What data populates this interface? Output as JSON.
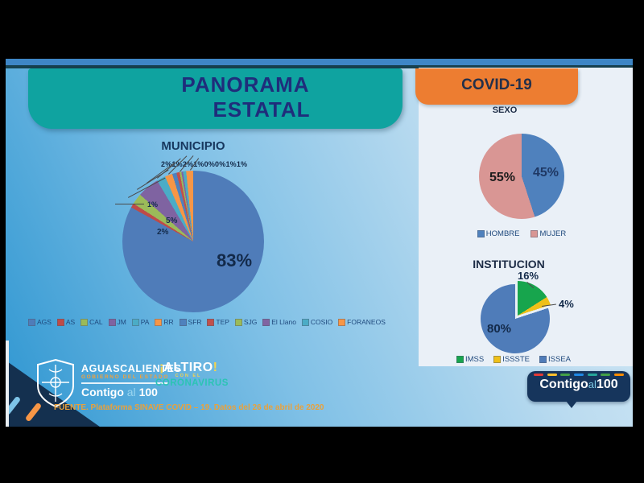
{
  "slide": {
    "title_line1": "PANORAMA",
    "title_line2": "ESTATAL",
    "covid_badge": "COVID-19",
    "fuente": "FUENTE. Plataforma SINAVE COVID – 19. Datos del 26 de abril de 2020"
  },
  "chart_data": [
    {
      "id": "municipio",
      "type": "pie",
      "title": "MUNICIPIO",
      "legend_position": "bottom",
      "slices": [
        {
          "label": "AGS",
          "value": 83,
          "color": "#4F7CB9"
        },
        {
          "label": "AS",
          "value": 1,
          "color": "#BE4B48"
        },
        {
          "label": "CAL",
          "value": 2,
          "color": "#9BBB59"
        },
        {
          "label": "JM",
          "value": 5,
          "color": "#7F63A1"
        },
        {
          "label": "PA",
          "value": 2,
          "color": "#4BACC6"
        },
        {
          "label": "RR",
          "value": 1,
          "color": "#F79646"
        },
        {
          "label": "SFR",
          "value": 2,
          "color": "#4F81BD"
        },
        {
          "label": "TEP",
          "value": 1,
          "color": "#C0504D"
        },
        {
          "label": "SJG",
          "value": 0,
          "color": "#9BBB59"
        },
        {
          "label": "El Llano",
          "value": 0,
          "color": "#8064A2"
        },
        {
          "label": "COSIO",
          "value": 1,
          "color": "#4BACC6"
        },
        {
          "label": "FORANEOS",
          "value": 1,
          "color": "#F79646"
        }
      ],
      "render_pct": [
        83,
        1,
        2.5,
        5,
        2,
        1.7,
        1,
        0.7,
        0.4,
        0.4,
        0.7,
        1.6
      ]
    },
    {
      "id": "sexo",
      "type": "pie",
      "title": "SEXO",
      "legend_position": "bottom",
      "slices": [
        {
          "label": "HOMBRE",
          "value": 45,
          "color": "#4F81BD"
        },
        {
          "label": "MUJER",
          "value": 55,
          "color": "#D99694"
        }
      ]
    },
    {
      "id": "institucion",
      "type": "pie",
      "title": "INSTITUCION",
      "legend_position": "bottom",
      "exploded": true,
      "slices": [
        {
          "label": "IMSS",
          "value": 16,
          "color": "#17A54D"
        },
        {
          "label": "ISSSTE",
          "value": 4,
          "color": "#EFC019"
        },
        {
          "label": "ISSEA",
          "value": 80,
          "color": "#4F7CB9"
        }
      ]
    }
  ],
  "labels": {
    "municipio_top_row": "2%1%2%1%0%0%1%1%",
    "municipio_main": "83%",
    "municipio_s1": "1%",
    "municipio_s2": "5%",
    "municipio_s3": "2%",
    "sexo_hombre": "45%",
    "sexo_mujer": "55%",
    "inst_imss": "16%",
    "inst_issste": "4%",
    "inst_issea": "80%"
  },
  "footer": {
    "gov_name": "AGUASCALIENTES",
    "gov_sub": "GOBIERNO DEL ESTADO",
    "slogan_contigo": "Contigo",
    "slogan_al": "al",
    "slogan_100": "100",
    "altiro_open": "¡",
    "altiro_main": "ALTIRO",
    "altiro_close": "!",
    "altiro_mid": "CON EL",
    "altiro_sub": "CORONAVIRUS",
    "bubble_contigo": "Contigo",
    "bubble_al": "al",
    "bubble_100": "100",
    "bubble_dashes": [
      "#E53935",
      "#FBC02D",
      "#43A047",
      "#1E88E5",
      "#26A69A",
      "#43A047",
      "#FB8C00"
    ]
  },
  "colors": {
    "teal_banner": "#0FA3A0",
    "orange_banner": "#ED7D31",
    "navy_title": "#1F2D7B",
    "right_panel": "#EAF0F7",
    "brand_navy": "#16355C",
    "fuente_orange": "#E9A13B",
    "altiro_teal": "#2BC4B4"
  }
}
